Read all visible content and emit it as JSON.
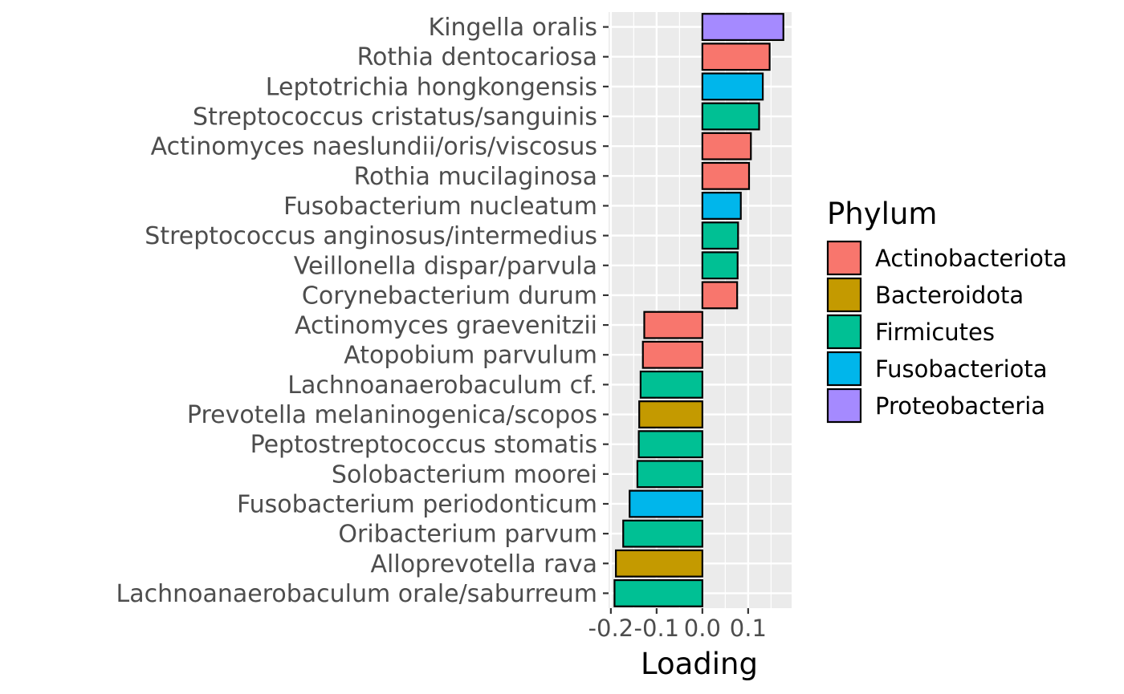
{
  "chart_data": {
    "type": "bar",
    "orientation": "horizontal",
    "xlabel": "Loading",
    "ylabel": "",
    "xlim": [
      -0.205,
      0.195
    ],
    "xticks": [
      -0.2,
      -0.1,
      0.0,
      0.1
    ],
    "xtick_labels": [
      "-0.2",
      "-0.1",
      "0.0",
      "0.1"
    ],
    "grid": true,
    "legend": {
      "title": "Phylum",
      "position": "right",
      "entries": [
        "Actinobacteriota",
        "Bacteroidota",
        "Firmicutes",
        "Fusobacteriota",
        "Proteobacteria"
      ]
    },
    "colors": {
      "Actinobacteriota": "#F8766D",
      "Bacteroidota": "#C49A00",
      "Firmicutes": "#00C094",
      "Fusobacteriota": "#00B6EB",
      "Proteobacteria": "#A58AFF"
    },
    "bars": [
      {
        "category": "Kingella oralis",
        "value": 0.177,
        "phylum": "Proteobacteria"
      },
      {
        "category": "Rothia dentocariosa",
        "value": 0.147,
        "phylum": "Actinobacteriota"
      },
      {
        "category": "Leptotrichia hongkongensis",
        "value": 0.132,
        "phylum": "Fusobacteriota"
      },
      {
        "category": "Streptococcus cristatus/sanguinis",
        "value": 0.124,
        "phylum": "Firmicutes"
      },
      {
        "category": "Actinomyces naeslundii/oris/viscosus",
        "value": 0.106,
        "phylum": "Actinobacteriota"
      },
      {
        "category": "Rothia mucilaginosa",
        "value": 0.102,
        "phylum": "Actinobacteriota"
      },
      {
        "category": "Fusobacterium nucleatum",
        "value": 0.084,
        "phylum": "Fusobacteriota"
      },
      {
        "category": "Streptococcus anginosus/intermedius",
        "value": 0.078,
        "phylum": "Firmicutes"
      },
      {
        "category": "Veillonella dispar/parvula",
        "value": 0.077,
        "phylum": "Firmicutes"
      },
      {
        "category": "Corynebacterium durum",
        "value": 0.076,
        "phylum": "Actinobacteriota"
      },
      {
        "category": "Actinomyces graevenitzii",
        "value": -0.127,
        "phylum": "Actinobacteriota"
      },
      {
        "category": "Atopobium parvulum",
        "value": -0.13,
        "phylum": "Actinobacteriota"
      },
      {
        "category": "Lachnoanaerobaculum cf.",
        "value": -0.135,
        "phylum": "Firmicutes"
      },
      {
        "category": "Prevotella melaninogenica/scopos",
        "value": -0.138,
        "phylum": "Bacteroidota"
      },
      {
        "category": "Peptostreptococcus stomatis",
        "value": -0.139,
        "phylum": "Firmicutes"
      },
      {
        "category": "Solobacterium moorei",
        "value": -0.142,
        "phylum": "Firmicutes"
      },
      {
        "category": "Fusobacterium periodonticum",
        "value": -0.159,
        "phylum": "Fusobacteriota"
      },
      {
        "category": "Oribacterium parvum",
        "value": -0.173,
        "phylum": "Firmicutes"
      },
      {
        "category": "Alloprevotella rava",
        "value": -0.189,
        "phylum": "Bacteroidota"
      },
      {
        "category": "Lachnoanaerobaculum orale/saburreum",
        "value": -0.192,
        "phylum": "Firmicutes"
      }
    ]
  }
}
